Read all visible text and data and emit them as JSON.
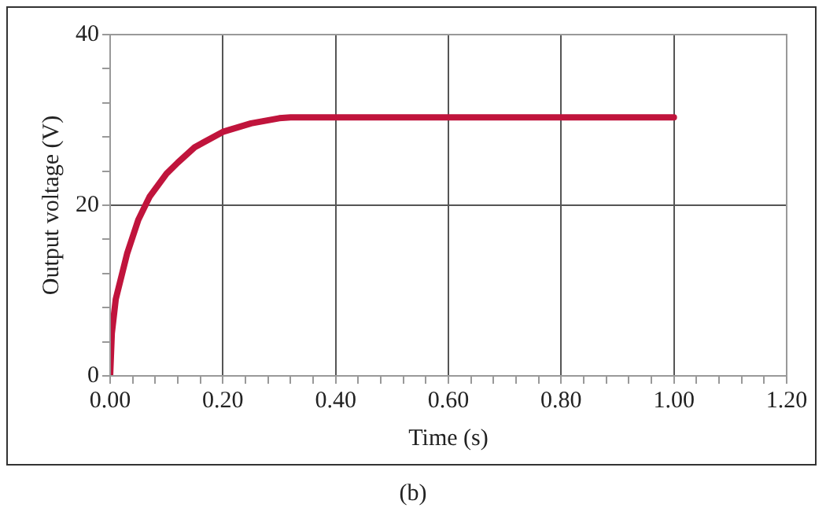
{
  "chart_data": {
    "type": "line",
    "xlabel": "Time (s)",
    "ylabel": "Output voltage (V)",
    "annotations": [
      "(b)"
    ],
    "series": [
      {
        "color": "#c0143c",
        "x": [
          0,
          0.003,
          0.01,
          0.03,
          0.05,
          0.07,
          0.1,
          0.12,
          0.15,
          0.2,
          0.25,
          0.3,
          0.32,
          1.0
        ],
        "values": [
          0,
          5,
          9,
          14.3,
          18.3,
          21,
          23.7,
          25,
          26.8,
          28.6,
          29.6,
          30.2,
          30.3,
          30.3
        ]
      }
    ],
    "xlim": [
      0,
      1.2
    ],
    "ylim": [
      0,
      40
    ],
    "xticks": [
      {
        "value": 0,
        "label": "0.00"
      },
      {
        "value": 0.04,
        "label": null
      },
      {
        "value": 0.08,
        "label": null
      },
      {
        "value": 0.12,
        "label": null
      },
      {
        "value": 0.16,
        "label": null
      },
      {
        "value": 0.2,
        "label": "0.20"
      },
      {
        "value": 0.24,
        "label": null
      },
      {
        "value": 0.28,
        "label": null
      },
      {
        "value": 0.32,
        "label": null
      },
      {
        "value": 0.36,
        "label": null
      },
      {
        "value": 0.4,
        "label": "0.40"
      },
      {
        "value": 0.44,
        "label": null
      },
      {
        "value": 0.48,
        "label": null
      },
      {
        "value": 0.52,
        "label": null
      },
      {
        "value": 0.56,
        "label": null
      },
      {
        "value": 0.6,
        "label": "0.60"
      },
      {
        "value": 0.64,
        "label": null
      },
      {
        "value": 0.68,
        "label": null
      },
      {
        "value": 0.72,
        "label": null
      },
      {
        "value": 0.76,
        "label": null
      },
      {
        "value": 0.8,
        "label": "0.80"
      },
      {
        "value": 0.84,
        "label": null
      },
      {
        "value": 0.88,
        "label": null
      },
      {
        "value": 0.92,
        "label": null
      },
      {
        "value": 0.96,
        "label": null
      },
      {
        "value": 1.0,
        "label": "1.00"
      },
      {
        "value": 1.04,
        "label": null
      },
      {
        "value": 1.08,
        "label": null
      },
      {
        "value": 1.12,
        "label": null
      },
      {
        "value": 1.16,
        "label": null
      },
      {
        "value": 1.2,
        "label": "1.20"
      }
    ],
    "yticks": [
      0,
      {
        "value": 4,
        "label": null
      },
      {
        "value": 8,
        "label": null
      },
      {
        "value": 12,
        "label": null
      },
      {
        "value": 16,
        "label": null
      },
      20,
      {
        "value": 24,
        "label": null
      },
      {
        "value": 28,
        "label": null
      },
      {
        "value": 32,
        "label": null
      },
      {
        "value": 36,
        "label": null
      },
      40
    ],
    "grid": true,
    "marker": "none",
    "line_style": "solid"
  }
}
